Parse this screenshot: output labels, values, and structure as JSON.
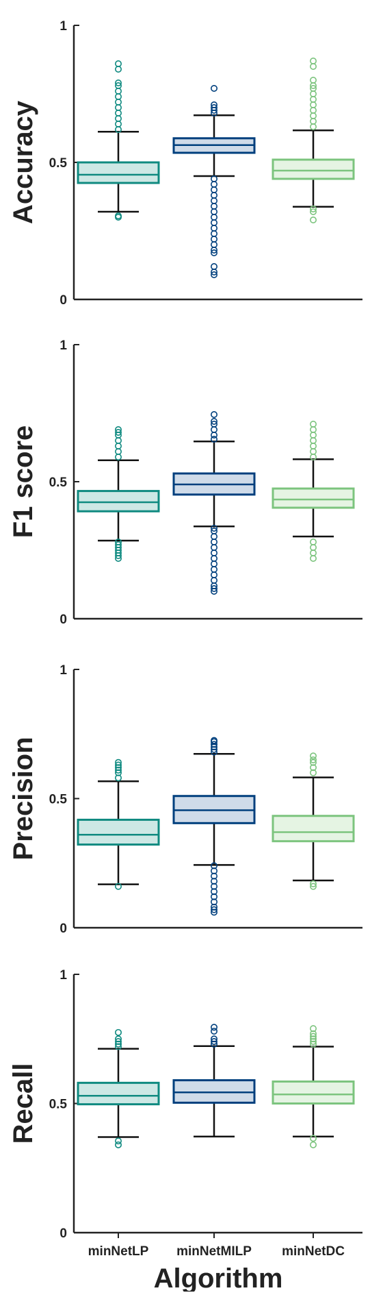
{
  "chart_data": [
    {
      "type": "box",
      "ylabel": "Accuracy",
      "ylim": [
        0,
        1
      ],
      "yticks": [
        0,
        0.5,
        1
      ],
      "ytick_labels": [
        "0",
        "0.5",
        "1"
      ],
      "categories": [
        "minNetLP",
        "minNetMILP",
        "minNetDC"
      ],
      "boxes": [
        {
          "whisker_low": 0.32,
          "q1": 0.425,
          "median": 0.455,
          "q3": 0.5,
          "whisker_high": 0.612,
          "outliers_low": [
            0.3,
            0.305
          ],
          "outliers_high": [
            0.62,
            0.64,
            0.66,
            0.68,
            0.7,
            0.72,
            0.74,
            0.76,
            0.78,
            0.79,
            0.84,
            0.86
          ]
        },
        {
          "whisker_low": 0.45,
          "q1": 0.535,
          "median": 0.563,
          "q3": 0.588,
          "whisker_high": 0.672,
          "outliers_low": [
            0.09,
            0.1,
            0.12,
            0.17,
            0.18,
            0.2,
            0.22,
            0.24,
            0.26,
            0.28,
            0.3,
            0.32,
            0.34,
            0.36,
            0.38,
            0.4,
            0.42,
            0.44
          ],
          "outliers_high": [
            0.68,
            0.69,
            0.7,
            0.71,
            0.77
          ]
        },
        {
          "whisker_low": 0.338,
          "q1": 0.44,
          "median": 0.47,
          "q3": 0.51,
          "whisker_high": 0.617,
          "outliers_low": [
            0.29,
            0.32,
            0.33
          ],
          "outliers_high": [
            0.63,
            0.65,
            0.67,
            0.69,
            0.71,
            0.73,
            0.75,
            0.77,
            0.78,
            0.8,
            0.85,
            0.87
          ]
        }
      ]
    },
    {
      "type": "box",
      "ylabel": "F1 score",
      "ylim": [
        0,
        1
      ],
      "yticks": [
        0,
        0.5,
        1
      ],
      "ytick_labels": [
        "0",
        "0.5",
        "1"
      ],
      "categories": [
        "minNetLP",
        "minNetMILP",
        "minNetDC"
      ],
      "boxes": [
        {
          "whisker_low": 0.285,
          "q1": 0.392,
          "median": 0.425,
          "q3": 0.466,
          "whisker_high": 0.578,
          "outliers_low": [
            0.22,
            0.23,
            0.24,
            0.25,
            0.26,
            0.27,
            0.28
          ],
          "outliers_high": [
            0.59,
            0.61,
            0.63,
            0.65,
            0.67,
            0.68,
            0.69
          ]
        },
        {
          "whisker_low": 0.337,
          "q1": 0.453,
          "median": 0.49,
          "q3": 0.53,
          "whisker_high": 0.647,
          "outliers_low": [
            0.1,
            0.11,
            0.12,
            0.14,
            0.16,
            0.18,
            0.2,
            0.22,
            0.24,
            0.26,
            0.28,
            0.3,
            0.32,
            0.33
          ],
          "outliers_high": [
            0.655,
            0.67,
            0.69,
            0.71,
            0.72,
            0.745
          ]
        },
        {
          "whisker_low": 0.3,
          "q1": 0.405,
          "median": 0.435,
          "q3": 0.475,
          "whisker_high": 0.582,
          "outliers_low": [
            0.22,
            0.24,
            0.26,
            0.28
          ],
          "outliers_high": [
            0.59,
            0.61,
            0.63,
            0.65,
            0.67,
            0.69,
            0.71
          ]
        }
      ]
    },
    {
      "type": "box",
      "ylabel": "Precision",
      "ylim": [
        0,
        1
      ],
      "yticks": [
        0,
        0.5,
        1
      ],
      "ytick_labels": [
        "0",
        "0.5",
        "1"
      ],
      "categories": [
        "minNetLP",
        "minNetMILP",
        "minNetDC"
      ],
      "boxes": [
        {
          "whisker_low": 0.168,
          "q1": 0.322,
          "median": 0.36,
          "q3": 0.418,
          "whisker_high": 0.567,
          "outliers_low": [
            0.16
          ],
          "outliers_high": [
            0.58,
            0.6,
            0.61,
            0.62,
            0.63,
            0.64
          ]
        },
        {
          "whisker_low": 0.243,
          "q1": 0.405,
          "median": 0.455,
          "q3": 0.51,
          "whisker_high": 0.673,
          "outliers_low": [
            0.06,
            0.07,
            0.08,
            0.1,
            0.12,
            0.14,
            0.16,
            0.18,
            0.2,
            0.22,
            0.24
          ],
          "outliers_high": [
            0.68,
            0.69,
            0.7,
            0.71,
            0.72,
            0.725
          ]
        },
        {
          "whisker_low": 0.183,
          "q1": 0.335,
          "median": 0.37,
          "q3": 0.433,
          "whisker_high": 0.582,
          "outliers_low": [
            0.16,
            0.17
          ],
          "outliers_high": [
            0.6,
            0.62,
            0.64,
            0.65,
            0.665
          ]
        }
      ]
    },
    {
      "type": "box",
      "ylabel": "Recall",
      "ylim": [
        0,
        1
      ],
      "yticks": [
        0,
        0.5,
        1
      ],
      "ytick_labels": [
        "0",
        "0.5",
        "1"
      ],
      "categories": [
        "minNetLP",
        "minNetMILP",
        "minNetDC"
      ],
      "xlabel": "Algorithm",
      "boxes": [
        {
          "whisker_low": 0.37,
          "q1": 0.497,
          "median": 0.53,
          "q3": 0.58,
          "whisker_high": 0.712,
          "outliers_low": [
            0.34,
            0.355
          ],
          "outliers_high": [
            0.72,
            0.73,
            0.74,
            0.75,
            0.775
          ]
        },
        {
          "whisker_low": 0.372,
          "q1": 0.503,
          "median": 0.543,
          "q3": 0.59,
          "whisker_high": 0.722,
          "outliers_low": [],
          "outliers_high": [
            0.73,
            0.74,
            0.75,
            0.78,
            0.795
          ]
        },
        {
          "whisker_low": 0.372,
          "q1": 0.5,
          "median": 0.535,
          "q3": 0.585,
          "whisker_high": 0.72,
          "outliers_low": [
            0.34,
            0.365
          ],
          "outliers_high": [
            0.73,
            0.74,
            0.75,
            0.76,
            0.77,
            0.79
          ]
        }
      ]
    }
  ],
  "colors": {
    "series": [
      "#0f8a80",
      "#003f7d",
      "#7cc47e"
    ],
    "fills": [
      "#cde8e5",
      "#cfdbe9",
      "#e5f4e3"
    ],
    "axis": "#222222",
    "whisker": "#111111"
  }
}
